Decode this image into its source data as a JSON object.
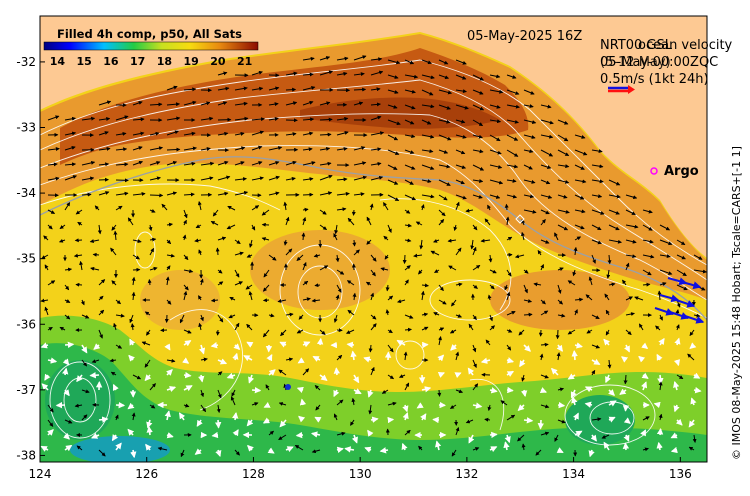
{
  "map": {
    "x_ticks": [
      "124",
      "126",
      "128",
      "130",
      "132",
      "134",
      "136"
    ],
    "y_ticks": [
      "-32",
      "-33",
      "-34",
      "-35",
      "-36",
      "-37",
      "-38"
    ],
    "xlim": [
      124,
      136.5
    ],
    "ylim": [
      -38.1,
      -31.3
    ],
    "colors": {
      "land": "#fdc993",
      "frame": "#000000",
      "contour": "#ffffff",
      "argo": "#ff00ff"
    }
  },
  "colorbar": {
    "title": "Filled 4h comp, p50, All Sats",
    "tick_labels": [
      "14",
      "15",
      "16",
      "17",
      "18",
      "19",
      "20",
      "21"
    ],
    "range": [
      13.5,
      21.5
    ]
  },
  "header": {
    "date": "05-May-2025 16Z",
    "velocity_title": "NRT00 GSL",
    "velocity_overlap": "ocean velocity",
    "velocity_date": "05-May-00:00ZQC",
    "velocity_overlap_2": "(5-12 May)",
    "scale_label": "0.5m/s (1kt 24h)"
  },
  "legend": {
    "argo_label": "Argo"
  },
  "footer": {
    "credit": "© IMOS 08-May-2025 15:48 Hobart; Tscale=CARS+[-1 1]"
  }
}
